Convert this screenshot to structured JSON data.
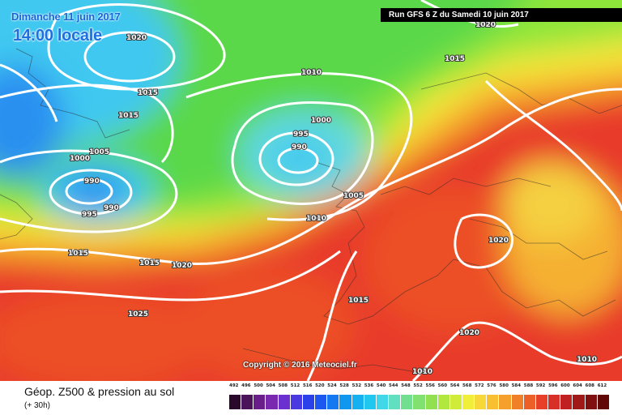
{
  "map": {
    "date": "Dimanche 11 juin 2017",
    "local_time": "14:00 locale",
    "run": "Run GFS 6 Z du Samedi 10 juin 2017",
    "copyright": "Copyright © 2016 Meteociel.fr",
    "isobar_labels": [
      "1020",
      "1015",
      "1015",
      "1005",
      "1000",
      "990",
      "995",
      "990",
      "1015",
      "1020",
      "1020",
      "1015",
      "1010",
      "1000",
      "995",
      "990",
      "1005",
      "1010",
      "1020",
      "1015",
      "1015",
      "1010",
      "1010",
      "1025",
      "1020"
    ],
    "colors": {
      "cyan": "#40c8f0",
      "green": "#6ee04a",
      "yellow": "#f5e63a",
      "orange": "#f59a2a",
      "red": "#e83a2a",
      "isobar": "#ffffff"
    }
  },
  "footer": {
    "title": "Géop. Z500 & pression au sol",
    "subtitle": "(+ 30h)"
  },
  "legend": {
    "values": [
      "492",
      "496",
      "500",
      "504",
      "508",
      "512",
      "516",
      "520",
      "524",
      "528",
      "532",
      "536",
      "540",
      "544",
      "548",
      "552",
      "556",
      "560",
      "564",
      "568",
      "572",
      "576",
      "580",
      "584",
      "588",
      "592",
      "596",
      "600",
      "604",
      "608",
      "612"
    ],
    "colors": [
      "#2a0a2a",
      "#4a145a",
      "#6a1e8a",
      "#7a28b0",
      "#6a30d0",
      "#4a38e0",
      "#2a40e8",
      "#1a58f0",
      "#1478f0",
      "#1098f0",
      "#14b0f0",
      "#20c8f0",
      "#40d8e8",
      "#60e0c0",
      "#70e090",
      "#80e070",
      "#90e050",
      "#b0e840",
      "#d0ec38",
      "#f0ee38",
      "#f8d838",
      "#f8c030",
      "#f5a02a",
      "#f08028",
      "#ec6028",
      "#e84028",
      "#d83028",
      "#c02020",
      "#a01818",
      "#801010",
      "#600808"
    ]
  }
}
